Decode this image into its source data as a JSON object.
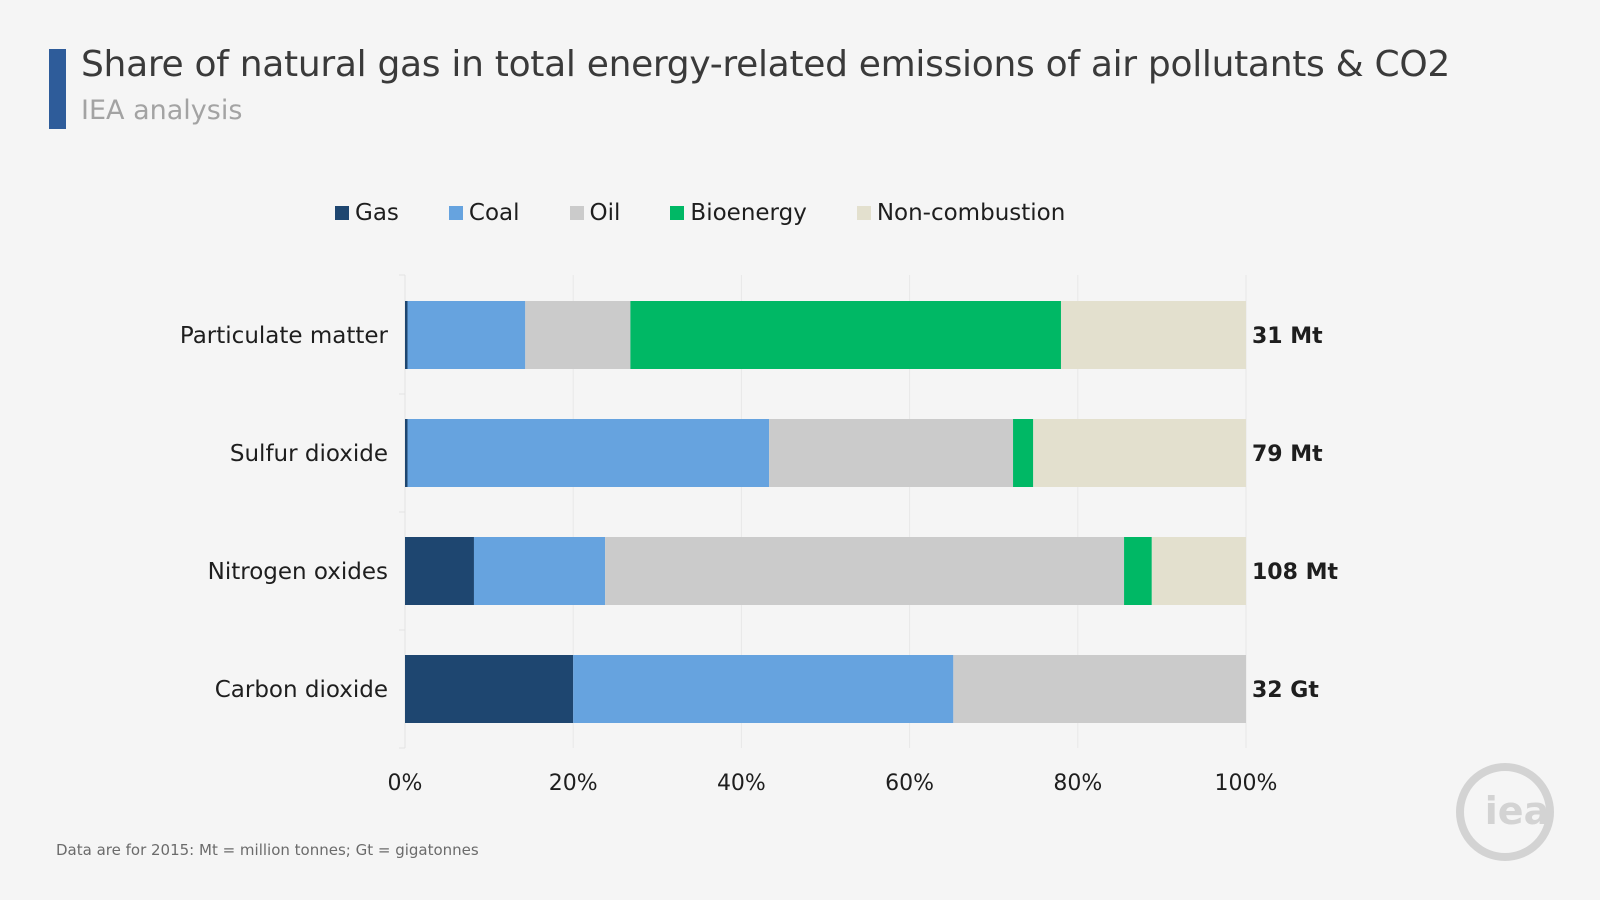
{
  "header": {
    "title": "Share of natural gas in total energy-related emissions of air pollutants & CO2",
    "subtitle": "IEA analysis"
  },
  "footer": {
    "note": "Data are for 2015: Mt = million tonnes; Gt = gigatonnes",
    "logo_text": "iea"
  },
  "colors": {
    "accent": "#2e5c9a",
    "gas": "#1e4670",
    "coal": "#66a3df",
    "oil": "#cbcbcb",
    "bioenergy": "#00b865",
    "non_combustion": "#e3e0ce"
  },
  "chart_data": {
    "type": "bar",
    "orientation": "horizontal",
    "stacked": true,
    "categories": [
      "Particulate matter",
      "Sulfur dioxide",
      "Nitrogen oxides",
      "Carbon dioxide"
    ],
    "totals": [
      "31 Mt",
      "79 Mt",
      "108 Mt",
      "32 Gt"
    ],
    "series": [
      {
        "name": "Gas",
        "color": "#1e4670",
        "values": [
          0.3,
          0.3,
          8.2,
          20.0
        ]
      },
      {
        "name": "Coal",
        "color": "#66a3df",
        "values": [
          14.0,
          43.0,
          15.6,
          45.2
        ]
      },
      {
        "name": "Oil",
        "color": "#cbcbcb",
        "values": [
          12.5,
          29.0,
          61.7,
          34.8
        ]
      },
      {
        "name": "Bioenergy",
        "color": "#00b865",
        "values": [
          51.2,
          2.4,
          3.3,
          0
        ]
      },
      {
        "name": "Non-combustion",
        "color": "#e3e0ce",
        "values": [
          22.0,
          25.3,
          11.2,
          0
        ]
      }
    ],
    "xlim": [
      0,
      100
    ],
    "xticks": [
      "0%",
      "20%",
      "40%",
      "60%",
      "80%",
      "100%"
    ],
    "grid": "vertical",
    "legend_position": "top"
  }
}
